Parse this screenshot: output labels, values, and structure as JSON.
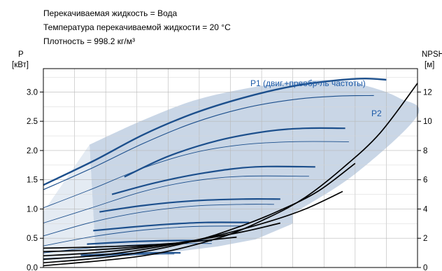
{
  "chart_data": {
    "type": "line",
    "title_lines": [
      "Перекачиваемая жидкость = Вода",
      "Температура перекачиваемой жидкости = 20 °C",
      "Плотность = 998.2 кг/м³"
    ],
    "left_axis": {
      "label_line1": "P",
      "label_line2": "[кВт]",
      "ticks": [
        "0.0",
        "0.5",
        "1.0",
        "1.5",
        "2.0",
        "2.5",
        "3.0"
      ],
      "range": [
        0,
        3.4
      ]
    },
    "right_axis": {
      "label_line1": "NPSH",
      "label_line2": "[м]",
      "ticks": [
        "0",
        "2",
        "4",
        "6",
        "8",
        "10",
        "12"
      ],
      "range": [
        0,
        13.6
      ]
    },
    "grid": true,
    "x_range": [
      0,
      30
    ],
    "shaded_region": {
      "color": "#c9d6e6",
      "light_color": "#e4ebf3",
      "upper_curve": [
        [
          3.7,
          2.1
        ],
        [
          8,
          2.52
        ],
        [
          12,
          2.85
        ],
        [
          16,
          3.05
        ],
        [
          20,
          3.17
        ],
        [
          23.5,
          3.2
        ],
        [
          26,
          3.1
        ],
        [
          28.5,
          2.9
        ],
        [
          30,
          2.6
        ],
        [
          25,
          1.6
        ],
        [
          20,
          0.92
        ]
      ],
      "lower_curve": [
        [
          20,
          0.75
        ],
        [
          17,
          0.48
        ],
        [
          14,
          0.36
        ],
        [
          11,
          0.28
        ],
        [
          8,
          0.22
        ],
        [
          4.2,
          0.15
        ]
      ]
    },
    "series": [
      {
        "name": "P1 (двиг.+преобр-ль частоты)",
        "color": "#1c4f8c",
        "label_color": "#1c5aa8",
        "values": [
          [
            0,
            1.41
          ],
          [
            4,
            1.82
          ],
          [
            8,
            2.27
          ],
          [
            12,
            2.63
          ],
          [
            16,
            2.9
          ],
          [
            20,
            3.1
          ],
          [
            23.5,
            3.2
          ],
          [
            25.8,
            3.23
          ],
          [
            27.5,
            3.21
          ]
        ]
      },
      {
        "name": "P2",
        "color": "#1c4f8c",
        "label_color": "#1c5aa8",
        "values": [
          [
            0,
            1.33
          ],
          [
            4,
            1.71
          ],
          [
            8,
            2.12
          ],
          [
            12,
            2.47
          ],
          [
            16,
            2.72
          ],
          [
            20,
            2.87
          ],
          [
            23.5,
            2.93
          ],
          [
            26.5,
            2.94
          ]
        ]
      }
    ],
    "family_power_curves": [
      {
        "thick": [
          [
            6.5,
            1.55
          ],
          [
            10,
            1.9
          ],
          [
            14,
            2.17
          ],
          [
            18,
            2.33
          ],
          [
            21,
            2.38
          ],
          [
            24.2,
            2.38
          ]
        ],
        "thin": [
          [
            0,
            1.02
          ],
          [
            4,
            1.35
          ],
          [
            8,
            1.7
          ],
          [
            12,
            1.96
          ],
          [
            16,
            2.1
          ],
          [
            20,
            2.15
          ],
          [
            24.5,
            2.15
          ]
        ]
      },
      {
        "thick": [
          [
            5.5,
            1.25
          ],
          [
            9,
            1.45
          ],
          [
            13,
            1.62
          ],
          [
            17,
            1.72
          ],
          [
            21.8,
            1.72
          ]
        ],
        "thin": [
          [
            0,
            0.76
          ],
          [
            4,
            1.03
          ],
          [
            8,
            1.3
          ],
          [
            12,
            1.48
          ],
          [
            16,
            1.56
          ],
          [
            21.3,
            1.56
          ]
        ]
      },
      {
        "thick": [
          [
            4.5,
            0.95
          ],
          [
            8,
            1.06
          ],
          [
            12,
            1.14
          ],
          [
            16,
            1.17
          ],
          [
            19,
            1.17
          ]
        ],
        "thin": [
          [
            0,
            0.54
          ],
          [
            4,
            0.78
          ],
          [
            8,
            0.95
          ],
          [
            12,
            1.05
          ],
          [
            16,
            1.08
          ],
          [
            18.5,
            1.08
          ]
        ]
      },
      {
        "thick": [
          [
            4,
            0.63
          ],
          [
            7,
            0.69
          ],
          [
            10,
            0.74
          ],
          [
            13,
            0.77
          ],
          [
            16.5,
            0.77
          ]
        ],
        "thin": [
          [
            0,
            0.37
          ],
          [
            4,
            0.53
          ],
          [
            8,
            0.64
          ],
          [
            12,
            0.7
          ],
          [
            16,
            0.71
          ]
        ]
      },
      {
        "thick": [
          [
            3.5,
            0.4
          ],
          [
            7,
            0.44
          ],
          [
            10,
            0.46
          ],
          [
            13.5,
            0.46
          ]
        ],
        "thin": [
          [
            0,
            0.25
          ],
          [
            4,
            0.34
          ],
          [
            8,
            0.39
          ],
          [
            12,
            0.41
          ],
          [
            13.5,
            0.41
          ]
        ]
      },
      {
        "thick": [
          [
            3,
            0.21
          ],
          [
            6,
            0.23
          ],
          [
            9,
            0.25
          ],
          [
            11,
            0.25
          ]
        ],
        "thin": [
          [
            0,
            0.15
          ],
          [
            4,
            0.19
          ],
          [
            8,
            0.22
          ],
          [
            10.5,
            0.23
          ]
        ]
      }
    ],
    "family_npsh_curves": [
      [
        [
          0,
          0.03
        ],
        [
          8,
          0.2
        ],
        [
          14,
          0.5
        ],
        [
          18,
          0.85
        ],
        [
          21,
          1.2
        ],
        [
          24,
          1.7
        ],
        [
          27,
          2.3
        ],
        [
          30,
          3.15
        ]
      ],
      [
        [
          0,
          0.08
        ],
        [
          6,
          0.2
        ],
        [
          12,
          0.45
        ],
        [
          16,
          0.72
        ],
        [
          19,
          0.98
        ],
        [
          22,
          1.3
        ],
        [
          25,
          1.78
        ]
      ],
      [
        [
          0,
          0.14
        ],
        [
          5,
          0.22
        ],
        [
          10,
          0.38
        ],
        [
          14,
          0.55
        ],
        [
          18,
          0.78
        ],
        [
          21,
          1.0
        ],
        [
          24,
          1.3
        ]
      ],
      [
        [
          0,
          0.2
        ],
        [
          4,
          0.25
        ],
        [
          8,
          0.34
        ],
        [
          12,
          0.46
        ],
        [
          16,
          0.61
        ],
        [
          19,
          0.76
        ]
      ],
      [
        [
          0,
          0.27
        ],
        [
          4,
          0.3
        ],
        [
          8,
          0.36
        ],
        [
          12,
          0.44
        ],
        [
          15.5,
          0.52
        ]
      ],
      [
        [
          0,
          0.33
        ],
        [
          4,
          0.35
        ],
        [
          8,
          0.38
        ],
        [
          11.5,
          0.43
        ]
      ]
    ]
  }
}
